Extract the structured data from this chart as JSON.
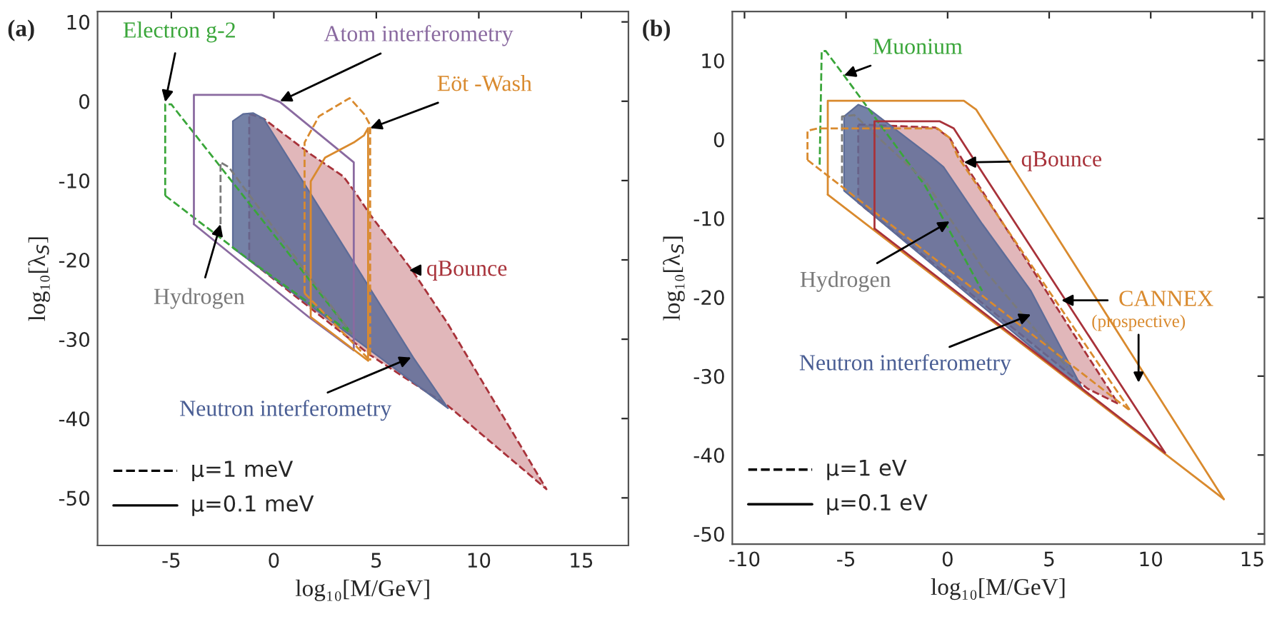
{
  "chart_data": [
    {
      "type": "line",
      "title": "(a)",
      "xlabel": "log₁₀[M/GeV]",
      "ylabel": "log₁₀[λ$_{S}$]",
      "xlim": [
        -8.6,
        17.3
      ],
      "ylim": [
        -56,
        11.3
      ],
      "xticks": [
        -5,
        0,
        5,
        10,
        15
      ],
      "yticks": [
        10,
        0,
        -10,
        -20,
        -30,
        -40,
        -50
      ],
      "series": [
        {
          "type": "area",
          "color": "#a8323a",
          "line_style": "dashed",
          "x": [
            -1.2,
            -0.5,
            1.7,
            3.4,
            4.0,
            4.7,
            6.8,
            8.5,
            13.3,
            8.5,
            4.7,
            -1.2
          ],
          "values": [
            -1.6,
            -2.2,
            -6.5,
            -9.5,
            -11.6,
            -14.3,
            -21.5,
            -28.1,
            -48.9,
            -38.4,
            -32.0,
            -20.0
          ]
        },
        {
          "type": "area",
          "color": "#5d6c98",
          "x": [
            -2.0,
            -1.5,
            -1.0,
            -0.5,
            6.8,
            8.5,
            -2.0
          ],
          "values": [
            -2.5,
            -1.6,
            -1.5,
            -2.2,
            -32.3,
            -38.7,
            -18.5
          ]
        },
        {
          "color": "#3aa63a",
          "line_style": "dashed",
          "x": [
            -5.3,
            -5.3,
            -5.0,
            3.8
          ],
          "values": [
            -11.9,
            -0.4,
            -0.4,
            -29.3
          ]
        },
        {
          "color": "#3aa63a",
          "line_style": "dashed",
          "x": [
            -5.3,
            -1.2,
            3.8
          ],
          "values": [
            -11.9,
            -20.0,
            -29.3
          ]
        },
        {
          "color": "#8a6aa0",
          "line_style": "solid",
          "x": [
            -3.9,
            -3.9,
            -0.6,
            0.3,
            3.9,
            3.9
          ],
          "values": [
            -15.5,
            0.8,
            0.8,
            -0.1,
            -7.7,
            -31.4
          ]
        },
        {
          "color": "#8a6aa0",
          "line_style": "solid",
          "x": [
            -3.9,
            1.7,
            3.9
          ],
          "values": [
            -15.5,
            -27.2,
            -31.4
          ]
        },
        {
          "color": "#d98a2e",
          "line_style": "dashed",
          "x": [
            1.5,
            1.5,
            2.2,
            3.7,
            4.4,
            4.7,
            4.7
          ],
          "values": [
            -24.2,
            -5.2,
            -1.9,
            0.4,
            -1.6,
            -3.0,
            -32.7
          ]
        },
        {
          "color": "#d98a2e",
          "line_style": "dashed",
          "x": [
            1.5,
            4.7
          ],
          "values": [
            -24.2,
            -32.7
          ]
        },
        {
          "color": "#d98a2e",
          "line_style": "solid",
          "x": [
            1.8,
            1.8,
            2.5,
            3.9,
            4.4,
            4.6,
            4.6
          ],
          "values": [
            -27.2,
            -10.1,
            -7.1,
            -5.2,
            -4.3,
            -3.4,
            -32.7
          ]
        },
        {
          "color": "#d98a2e",
          "line_style": "solid",
          "x": [
            1.8,
            4.6
          ],
          "values": [
            -27.2,
            -32.7
          ]
        },
        {
          "color": "#7a7a7a",
          "line_style": "dashed",
          "x": [
            -2.6,
            -2.6,
            -2.2,
            3.8
          ],
          "values": [
            -15.5,
            -7.7,
            -8.3,
            -29.3
          ]
        }
      ],
      "annotations": [
        {
          "text": "Electron g-2",
          "x": -5.3,
          "y": -0.1
        },
        {
          "text": "Atom interferometry",
          "x": 0.3,
          "y": 0.0
        },
        {
          "text": "Eöt -Wash",
          "x": 4.7,
          "y": -3.4
        },
        {
          "text": "qBounce",
          "x": 6.6,
          "y": -21.3
        },
        {
          "text": "Hydrogen",
          "x": -2.6,
          "y": -15.5
        },
        {
          "text": "Neutron interferometry",
          "x": 6.7,
          "y": -32.3
        },
        "μ=1 meV",
        "μ=0.1 meV"
      ]
    },
    {
      "type": "line",
      "title": "(b)",
      "xlabel": "log₁₀[M/GeV]",
      "ylabel": "log₁₀[λ$_{S}$]",
      "xlim": [
        -10.6,
        15.6
      ],
      "ylim": [
        -51.3,
        16.2
      ],
      "xticks": [
        -10,
        -5,
        0,
        5,
        10,
        15
      ],
      "yticks": [
        10,
        0,
        -10,
        -20,
        -30,
        -40,
        -50
      ],
      "series": [
        {
          "type": "area",
          "color": "#a8323a",
          "line_style": "dashed",
          "x": [
            -4.4,
            -0.6,
            0.1,
            0.8,
            8.4,
            6.9,
            -4.4
          ],
          "values": [
            1.9,
            1.5,
            0.2,
            -2.9,
            -33.5,
            -31.6,
            -8.0
          ]
        },
        {
          "type": "area",
          "color": "#5d6c98",
          "x": [
            -5.1,
            -5.1,
            -4.4,
            -3.9,
            -0.8,
            -0.2,
            1.7,
            4.1,
            6.7,
            -5.1
          ],
          "values": [
            -6.5,
            2.9,
            4.4,
            3.9,
            -2.2,
            -3.5,
            -10.7,
            -19.2,
            -31.9,
            -6.5
          ]
        },
        {
          "color": "#3aa63a",
          "line_style": "dashed",
          "x": [
            -6.3,
            -6.2,
            -6.0,
            -5.1,
            -3.7,
            -1.1,
            1.7
          ],
          "values": [
            -3.2,
            11.2,
            11.2,
            8.1,
            3.2,
            -5.9,
            -19.2
          ]
        },
        {
          "color": "#7a7a7a",
          "line_style": "dashed",
          "x": [
            -5.2,
            -5.2,
            -4.6,
            -1.1,
            1.7,
            5.9
          ],
          "values": [
            -5.6,
            2.9,
            3.1,
            -5.3,
            -16.2,
            -28.9
          ]
        },
        {
          "color": "#d98a2e",
          "line_style": "solid",
          "x": [
            -5.9,
            -5.9,
            0.8,
            1.4,
            13.6
          ],
          "values": [
            -7.0,
            4.9,
            4.9,
            3.8,
            -45.6
          ]
        },
        {
          "color": "#d98a2e",
          "line_style": "solid",
          "x": [
            -5.9,
            13.6
          ],
          "values": [
            -7.0,
            -45.6
          ]
        },
        {
          "color": "#d98a2e",
          "line_style": "dashed",
          "x": [
            -6.9,
            -6.9,
            -6.4,
            -0.5,
            0.1,
            0.5,
            9.0
          ],
          "values": [
            -2.6,
            1.1,
            1.4,
            1.4,
            0.2,
            -2.2,
            -34.4
          ]
        },
        {
          "color": "#d98a2e",
          "line_style": "dashed",
          "x": [
            -6.9,
            9.0
          ],
          "values": [
            -2.6,
            -34.4
          ]
        },
        {
          "color": "#a8323a",
          "line_style": "solid",
          "x": [
            -3.6,
            -3.6,
            -0.4,
            0.3,
            0.9,
            10.7
          ],
          "values": [
            -11.3,
            2.3,
            2.3,
            1.4,
            -1.0,
            -39.7
          ]
        },
        {
          "color": "#a8323a",
          "line_style": "solid",
          "x": [
            -3.6,
            10.7
          ],
          "values": [
            -11.3,
            -39.7
          ]
        }
      ],
      "annotations": [
        {
          "text": "Muonium",
          "x": -5.1,
          "y": 8.1
        },
        {
          "text": "qBounce",
          "x": 0.8,
          "y": -2.9
        },
        {
          "text": "Hydrogen",
          "x": 0.1,
          "y": -10.4
        },
        {
          "text": "CANNEX",
          "x": 5.6,
          "y": -20.4
        },
        {
          "text": "(prospective)"
        },
        {
          "text": "Neutron interferometry",
          "x": 4.1,
          "y": -22.2
        },
        "μ=1 eV",
        "μ=0.1 eV"
      ]
    }
  ]
}
